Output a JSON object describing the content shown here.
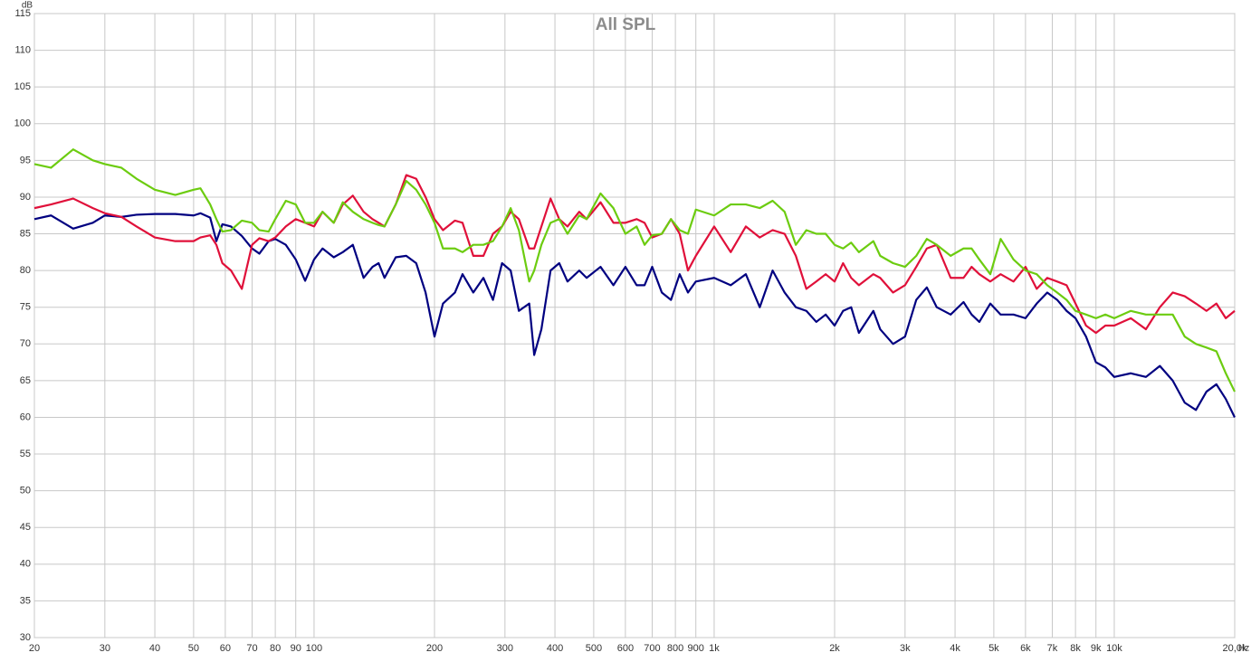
{
  "chart_data": {
    "type": "line",
    "title": "All SPL",
    "y_label": "dB",
    "x_label": "Hz",
    "log_x": true,
    "grid": true,
    "xlim": [
      20,
      20000
    ],
    "ylim": [
      30,
      115
    ],
    "xticks": [
      20,
      30,
      40,
      50,
      60,
      70,
      80,
      90,
      100,
      200,
      300,
      400,
      500,
      600,
      700,
      800,
      900,
      {
        "value": 1000,
        "label": "1k"
      },
      {
        "value": 2000,
        "label": "2k"
      },
      {
        "value": 3000,
        "label": "3k"
      },
      {
        "value": 4000,
        "label": "4k"
      },
      {
        "value": 5000,
        "label": "5k"
      },
      {
        "value": 6000,
        "label": "6k"
      },
      {
        "value": 7000,
        "label": "7k"
      },
      {
        "value": 8000,
        "label": "8k"
      },
      {
        "value": 9000,
        "label": "9k"
      },
      {
        "value": 10000,
        "label": "10k"
      },
      {
        "value": 20000,
        "label": "20,0k"
      }
    ],
    "yticks": [
      30,
      35,
      40,
      45,
      50,
      55,
      60,
      65,
      70,
      75,
      80,
      85,
      90,
      95,
      100,
      105,
      110,
      115
    ],
    "x": [
      20,
      22,
      25,
      28,
      30,
      33,
      36,
      40,
      45,
      50,
      52,
      55,
      57,
      59,
      62,
      66,
      70,
      73,
      77,
      80,
      85,
      90,
      95,
      100,
      105,
      112,
      118,
      125,
      133,
      140,
      145,
      150,
      160,
      170,
      180,
      190,
      200,
      210,
      225,
      235,
      250,
      265,
      280,
      295,
      310,
      325,
      345,
      355,
      370,
      390,
      410,
      430,
      460,
      480,
      520,
      560,
      600,
      640,
      670,
      700,
      740,
      780,
      820,
      860,
      900,
      1000,
      1100,
      1200,
      1300,
      1400,
      1500,
      1600,
      1700,
      1800,
      1900,
      2000,
      2100,
      2200,
      2300,
      2500,
      2600,
      2800,
      3000,
      3200,
      3400,
      3600,
      3900,
      4200,
      4400,
      4600,
      4900,
      5200,
      5600,
      6000,
      6400,
      6800,
      7200,
      7600,
      8000,
      8500,
      9000,
      9500,
      10000,
      11000,
      12000,
      13000,
      14000,
      15000,
      16000,
      17000,
      18000,
      19000,
      20000
    ],
    "series": [
      {
        "color": "#000080",
        "values": [
          87,
          87.5,
          85.7,
          86.5,
          87.5,
          87.3,
          87.6,
          87.7,
          87.7,
          87.5,
          87.8,
          87.2,
          84,
          86.3,
          86,
          84.7,
          83,
          82.3,
          84,
          84.3,
          83.5,
          81.5,
          78.6,
          81.5,
          83,
          81.8,
          82.5,
          83.5,
          79,
          80.5,
          81,
          79,
          81.8,
          82,
          81,
          77,
          71,
          75.5,
          77,
          79.5,
          77,
          79,
          76,
          81,
          80,
          74.5,
          75.5,
          68.5,
          72,
          80,
          81,
          78.5,
          80,
          79,
          80.5,
          78,
          80.5,
          78,
          78,
          80.5,
          77,
          76,
          79.5,
          77,
          78.5,
          79,
          78,
          79.5,
          75,
          80,
          77,
          75,
          74.5,
          73,
          74,
          72.5,
          74.5,
          75,
          71.5,
          74.5,
          72,
          70,
          71,
          76,
          77.7,
          75,
          74,
          75.7,
          74,
          73,
          75.5,
          74,
          74,
          73.5,
          75.5,
          77,
          76,
          74.5,
          73.5,
          71,
          67.5,
          66.8,
          65.5,
          66,
          65.5,
          67,
          65,
          62,
          61,
          63.5,
          64.5,
          62.5,
          60
        ]
      },
      {
        "color": "#e0103a",
        "values": [
          88.5,
          89,
          89.8,
          88.5,
          87.8,
          87.3,
          86,
          84.5,
          84,
          84,
          84.5,
          84.8,
          83.5,
          81,
          80,
          77.5,
          83.5,
          84.4,
          84,
          84.5,
          86,
          87,
          86.5,
          86,
          88,
          86.5,
          89,
          90.2,
          88,
          87,
          86.5,
          86,
          89,
          93,
          92.5,
          90,
          87,
          85.5,
          86.8,
          86.5,
          82,
          82,
          85,
          86,
          88,
          87,
          83,
          83,
          86,
          89.8,
          87,
          86,
          88,
          87,
          89.3,
          86.5,
          86.5,
          87,
          86.5,
          84.5,
          85,
          87,
          85,
          80,
          82,
          86,
          82.5,
          86,
          84.5,
          85.5,
          85,
          82,
          77.5,
          78.5,
          79.5,
          78.5,
          81,
          79,
          78,
          79.5,
          79,
          77,
          78,
          80.5,
          83,
          83.5,
          79,
          79,
          80.5,
          79.5,
          78.5,
          79.5,
          78.5,
          80.5,
          77.5,
          79,
          78.5,
          78,
          75.5,
          72.5,
          71.5,
          72.5,
          72.5,
          73.5,
          72,
          75,
          77,
          76.5,
          75.5,
          74.5,
          75.5,
          73.5,
          74.5
        ]
      },
      {
        "color": "#6ccc10",
        "values": [
          94.5,
          94,
          96.5,
          95,
          94.5,
          94,
          92.5,
          91,
          90.3,
          91,
          91.2,
          89,
          87,
          85.3,
          85.5,
          86.8,
          86.5,
          85.5,
          85.3,
          87,
          89.5,
          89,
          86.5,
          86.5,
          88,
          86.5,
          89.3,
          88,
          87,
          86.5,
          86.2,
          86,
          89,
          92.2,
          91,
          89,
          86.5,
          83,
          83,
          82.5,
          83.5,
          83.5,
          84,
          86,
          88.5,
          85.5,
          78.5,
          80,
          83.5,
          86.5,
          87,
          85,
          87.5,
          87,
          90.5,
          88.5,
          85,
          86,
          83.5,
          84.8,
          85,
          87,
          85.5,
          85,
          88.3,
          87.5,
          89,
          89,
          88.5,
          89.5,
          88,
          83.5,
          85.5,
          85,
          85,
          83.5,
          83,
          83.8,
          82.5,
          84,
          82,
          81,
          80.5,
          82,
          84.3,
          83.5,
          82,
          83,
          83,
          81.5,
          79.5,
          84.3,
          81.5,
          80,
          79.5,
          78,
          77,
          76,
          74.5,
          74,
          73.5,
          74,
          73.5,
          74.5,
          74,
          74,
          74,
          71,
          70,
          69.5,
          69,
          66,
          63.5
        ]
      }
    ]
  }
}
